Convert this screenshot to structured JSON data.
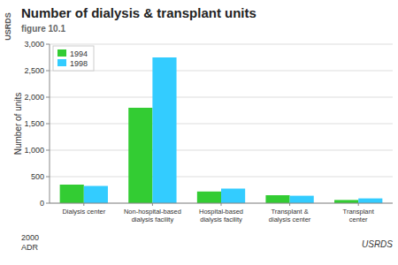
{
  "chart_data": {
    "type": "bar",
    "title": "Number of dialysis & transplant units",
    "subtitle": "figure 10.1",
    "ylabel": "Number of units",
    "categories": [
      "Dialysis center",
      "Non-hospital-based\ndialysis facility",
      "Hospital-based\ndialysis facility",
      "Transplant &\ndialysis center",
      "Transplant\ncenter"
    ],
    "series": [
      {
        "name": "1994",
        "color": "#33cc33",
        "values": [
          350,
          1800,
          220,
          150,
          60
        ]
      },
      {
        "name": "1998",
        "color": "#33ccff",
        "values": [
          325,
          2750,
          275,
          140,
          90
        ]
      }
    ],
    "ylim": [
      0,
      3000
    ],
    "yticks": [
      0,
      500,
      {
        "value": 1000,
        "label": "1,000"
      },
      {
        "value": 1500,
        "label": "1,500"
      },
      {
        "value": 2000,
        "label": "2,000"
      },
      {
        "value": 2500,
        "label": "2,500"
      },
      {
        "value": 3000,
        "label": "3,000"
      }
    ],
    "grid": true,
    "legend": "upper left",
    "annotations": [
      "USRDS",
      "2000\nADR",
      "USRDS"
    ]
  }
}
